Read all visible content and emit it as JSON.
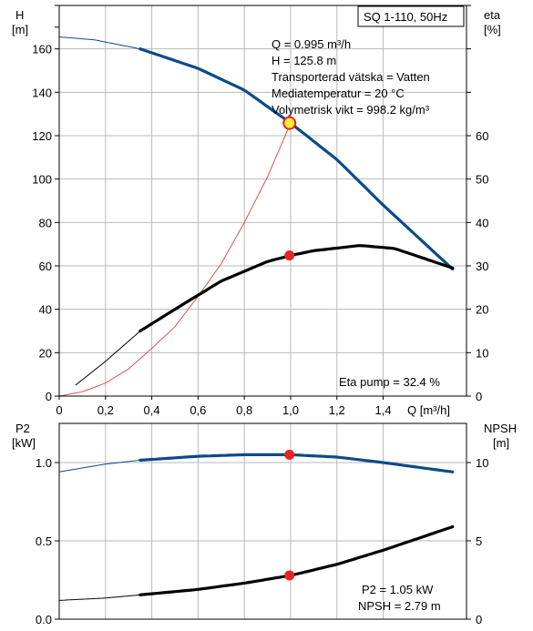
{
  "title_box": "SQ 1-110, 50Hz",
  "top_chart": {
    "left_axis": {
      "title": "H",
      "unit": "[m]",
      "range": [
        0,
        180
      ],
      "ticks": [
        0,
        20,
        40,
        60,
        80,
        100,
        120,
        140,
        160
      ],
      "tick_labels": [
        "0",
        "20",
        "40",
        "60",
        "80",
        "100",
        "120",
        "140",
        "160"
      ]
    },
    "right_axis": {
      "title": "eta",
      "unit": "[%]",
      "range": [
        0,
        90
      ],
      "ticks": [
        0,
        10,
        20,
        30,
        40,
        50,
        60
      ],
      "tick_labels": [
        "0",
        "10",
        "20",
        "30",
        "40",
        "50",
        "60"
      ]
    },
    "x_axis": {
      "label": "Q [m³/h]",
      "range": [
        0,
        1.76
      ],
      "ticks": [
        0,
        0.2,
        0.4,
        0.6,
        0.8,
        1.0,
        1.2,
        1.4
      ],
      "tick_labels": [
        "0",
        "0,2",
        "0,4",
        "0,6",
        "0,8",
        "1,0",
        "1,2",
        "1,4"
      ]
    },
    "info_lines": [
      "Q = 0.995 m³/h",
      "H = 125.8 m",
      "Transporterad vätska = Vatten",
      "Mediatemperatur = 20 °C",
      "Volymetrisk vikt = 998.2 kg/m³"
    ],
    "eta_note": "Eta pump = 32.4 %"
  },
  "bottom_chart": {
    "left_axis": {
      "title": "P2",
      "unit": "[kW]",
      "range": [
        0,
        1.25
      ],
      "ticks": [
        0,
        0.5,
        1.0
      ],
      "tick_labels": [
        "0.0",
        "0.5",
        "1.0"
      ]
    },
    "right_axis": {
      "title": "NPSH",
      "unit": "[m]",
      "range": [
        0,
        12.5
      ],
      "ticks": [
        0,
        5,
        10
      ],
      "tick_labels": [
        "0",
        "5",
        "10"
      ]
    },
    "result_lines": [
      "P2 = 1.05 kW",
      "NPSH = 2.79 m"
    ]
  },
  "colors": {
    "blue": "#0b4a8b",
    "black": "#000000",
    "red_line": "#e05050",
    "marker_red": "#e8261f",
    "marker_yellow": "#ffee33",
    "grid": "#b9b9b9"
  },
  "chart_data": [
    {
      "type": "line",
      "x_label": "Q [m³/h]",
      "series": [
        {
          "name": "H",
          "axis": "left",
          "x": [
            0.0,
            0.15,
            0.35,
            0.6,
            0.8,
            1.0,
            1.2,
            1.4,
            1.7
          ],
          "y": [
            165.5,
            164.2,
            160.0,
            151.0,
            141.0,
            125.8,
            109.0,
            88.0,
            58.5
          ],
          "operating_range": [
            0.35,
            1.7
          ]
        },
        {
          "name": "eta",
          "axis": "right",
          "x": [
            0.07,
            0.2,
            0.35,
            0.5,
            0.7,
            0.9,
            1.0,
            1.1,
            1.3,
            1.45,
            1.7
          ],
          "y": [
            2.5,
            8.0,
            15.0,
            20.0,
            26.5,
            31.0,
            32.4,
            33.5,
            34.7,
            34.0,
            29.5
          ],
          "operating_range": [
            0.35,
            1.7
          ]
        },
        {
          "name": "system",
          "axis": "left",
          "x": [
            0.0,
            0.1,
            0.2,
            0.3,
            0.4,
            0.5,
            0.6,
            0.7,
            0.8,
            0.9,
            1.0
          ],
          "y": [
            0.0,
            2.0,
            6.0,
            12.5,
            22.0,
            32.0,
            46.0,
            61.0,
            80.0,
            101.0,
            125.8
          ]
        }
      ],
      "duty_point": {
        "q": 0.995,
        "h": 125.8,
        "eta": 32.4
      }
    },
    {
      "type": "line",
      "x_label": "Q [m³/h]",
      "series": [
        {
          "name": "P2",
          "axis": "left",
          "x": [
            0.0,
            0.2,
            0.35,
            0.6,
            0.8,
            1.0,
            1.2,
            1.4,
            1.7
          ],
          "y": [
            0.94,
            0.99,
            1.015,
            1.04,
            1.05,
            1.05,
            1.035,
            1.0,
            0.94
          ],
          "operating_range": [
            0.35,
            1.7
          ]
        },
        {
          "name": "NPSH",
          "axis": "right",
          "x": [
            0.0,
            0.2,
            0.35,
            0.6,
            0.8,
            1.0,
            1.2,
            1.4,
            1.7
          ],
          "y": [
            1.2,
            1.35,
            1.55,
            1.9,
            2.3,
            2.79,
            3.5,
            4.4,
            5.9
          ],
          "operating_range": [
            0.35,
            1.7
          ]
        }
      ],
      "duty_point": {
        "q": 0.995,
        "p2": 1.05,
        "npsh": 2.79
      }
    }
  ]
}
